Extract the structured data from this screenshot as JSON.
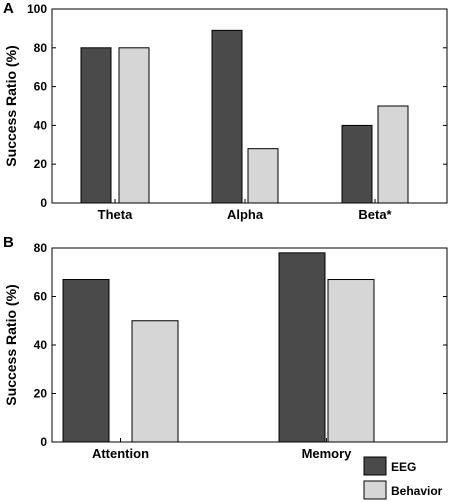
{
  "panels": [
    {
      "letter": "A"
    },
    {
      "letter": "B"
    }
  ],
  "legend": {
    "items": [
      "EEG",
      "Behavior"
    ]
  },
  "colors": {
    "EEG": "#4a4a4a",
    "Behavior": "#d6d6d6"
  },
  "chart_data": [
    {
      "type": "bar",
      "ylabel": "Success Ratio (%)",
      "xlabel": "",
      "ylim": [
        0,
        100
      ],
      "yticks": [
        0,
        20,
        40,
        60,
        80,
        100
      ],
      "categories": [
        "Theta",
        "Alpha",
        "Beta*"
      ],
      "series": [
        {
          "name": "EEG",
          "values": [
            80,
            89,
            40
          ]
        },
        {
          "name": "Behavior",
          "values": [
            80,
            28,
            50
          ]
        }
      ],
      "grid": false,
      "legend_position": "none"
    },
    {
      "type": "bar",
      "ylabel": "Success Ratio (%)",
      "xlabel": "",
      "ylim": [
        0,
        80
      ],
      "yticks": [
        0,
        20,
        40,
        60,
        80
      ],
      "categories": [
        "Attention",
        "Memory"
      ],
      "series": [
        {
          "name": "EEG",
          "values": [
            67,
            78
          ]
        },
        {
          "name": "Behavior",
          "values": [
            50,
            67
          ]
        }
      ],
      "grid": false,
      "legend_position": "bottom-right"
    }
  ]
}
